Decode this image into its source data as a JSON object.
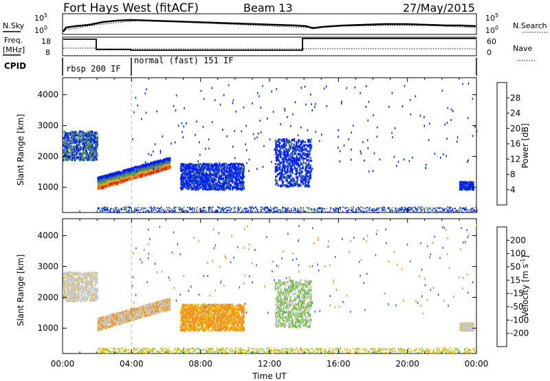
{
  "header": {
    "title": "Fort Hays West (fitACF)",
    "beam": "Beam 13",
    "date": "27/May/2015"
  },
  "top_panels": {
    "nsky_label": "N.Sky",
    "nsearch_label": "N.Search",
    "freq_label_1": "Freq.",
    "freq_label_2": "[MHz]",
    "nave_label": "Nave",
    "cpid_label": "CPID",
    "noise_ticks_left": [
      "10^5",
      "10^0"
    ],
    "noise_ticks_right": [
      "10^5",
      "10^0"
    ],
    "freq_ticks": [
      "18",
      "8"
    ],
    "nave_ticks": [
      "60",
      "0"
    ],
    "cpid_segments": [
      {
        "label": "rbsp 200 IF",
        "start_hour": 0,
        "end_hour": 4
      },
      {
        "label": "normal (fast) 151 IF",
        "start_hour": 4,
        "end_hour": 24
      }
    ]
  },
  "chart_data": [
    {
      "type": "heatmap",
      "name": "power-panel",
      "ylabel": "Slant Range [km]",
      "xlim": [
        0,
        24
      ],
      "ylim": [
        180,
        4550
      ],
      "yticks": [
        1000,
        2000,
        3000,
        4000
      ],
      "colorbar": {
        "label": "Power [dB]",
        "ticks": [
          "4",
          "8",
          "12",
          "16",
          "20",
          "24",
          "28"
        ],
        "colors": [
          "#0020ff",
          "#2850c8",
          "#4a7a6a",
          "#50a050",
          "#b0b0b0",
          "#f0d000",
          "#f0a020",
          "#f07010",
          "#e02010"
        ]
      },
      "regions": [
        {
          "t0": 0.0,
          "t1": 2.0,
          "r0": 1900,
          "r1": 2850,
          "level": "mid"
        },
        {
          "t0": 2.0,
          "t1": 6.2,
          "r0": 900,
          "r1": 2000,
          "level": "high"
        },
        {
          "t0": 6.8,
          "t1": 10.5,
          "r0": 950,
          "r1": 1800,
          "level": "low"
        },
        {
          "t0": 12.3,
          "t1": 14.4,
          "r0": 1050,
          "r1": 2600,
          "level": "low"
        },
        {
          "t0": 23.0,
          "t1": 23.8,
          "r0": 950,
          "r1": 1200,
          "level": "low"
        }
      ]
    },
    {
      "type": "heatmap",
      "name": "velocity-panel",
      "ylabel": "Slant Range [km]",
      "xlabel": "Time UT",
      "xlim": [
        0,
        24
      ],
      "ylim": [
        180,
        4550
      ],
      "yticks": [
        1000,
        2000,
        3000,
        4000
      ],
      "xticks": [
        "00:00",
        "04:00",
        "08:00",
        "12:00",
        "16:00",
        "20:00",
        "00:00"
      ],
      "colorbar": {
        "label": "Velocity [m s^-1]",
        "ticks": [
          "200",
          "100",
          "50",
          "15",
          "-15",
          "-50",
          "-100",
          "-200"
        ],
        "colors": [
          "#1030c0",
          "#2860d8",
          "#3aa060",
          "#70c040",
          "#c8c8c8",
          "#f0c000",
          "#f09020",
          "#f05010",
          "#e01010"
        ]
      },
      "regions": [
        {
          "t0": 0.0,
          "t1": 2.0,
          "r0": 1900,
          "r1": 2850,
          "level": "grey"
        },
        {
          "t0": 2.0,
          "t1": 6.2,
          "r0": 900,
          "r1": 2000,
          "level": "grey-orange"
        },
        {
          "t0": 6.8,
          "t1": 10.5,
          "r0": 950,
          "r1": 1800,
          "level": "orange"
        },
        {
          "t0": 12.3,
          "t1": 14.4,
          "r0": 1050,
          "r1": 2600,
          "level": "green-grey"
        },
        {
          "t0": 23.0,
          "t1": 23.8,
          "r0": 950,
          "r1": 1200,
          "level": "grey"
        }
      ]
    }
  ]
}
